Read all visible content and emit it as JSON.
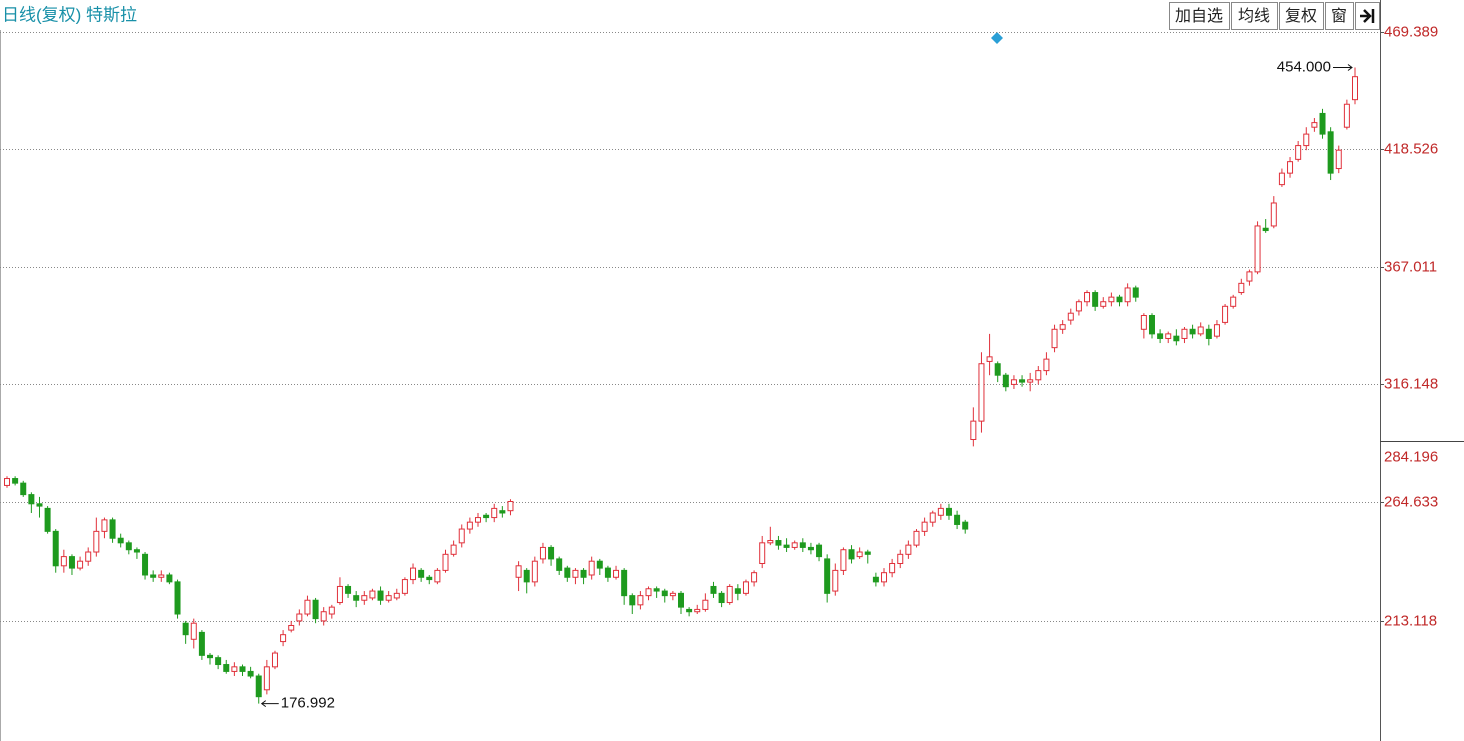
{
  "chart_data": {
    "type": "candlestick",
    "title": "日线(复权) 特斯拉",
    "buttons": [
      "加自选",
      "均线",
      "复权",
      "窗"
    ],
    "ylim": [
      160.7,
      483.4
    ],
    "yticks": [
      {
        "value": 469.389,
        "label": "469.389"
      },
      {
        "value": 418.526,
        "label": "418.526"
      },
      {
        "value": 367.011,
        "label": "367.011"
      },
      {
        "value": 316.148,
        "label": "316.148"
      },
      {
        "value": 264.633,
        "label": "264.633"
      },
      {
        "value": 213.118,
        "label": "213.118"
      }
    ],
    "axis_marker": {
      "value": 284.196,
      "label": "284.196"
    },
    "grid": true,
    "max_label": "454.000",
    "min_label": "176.992",
    "up_color": "#e0303a",
    "down_color": "#1e9a1e",
    "open": [
      272,
      275,
      273,
      268,
      264,
      262,
      252,
      237,
      241,
      236,
      239,
      243,
      252,
      257,
      249,
      247,
      244,
      242,
      233,
      232,
      233,
      230,
      212,
      205,
      208,
      198,
      197,
      194,
      191,
      193,
      191,
      189,
      183,
      193,
      204,
      209,
      213,
      216,
      222,
      213,
      216,
      221,
      228,
      224,
      222,
      223,
      226,
      222,
      223,
      225,
      231,
      235,
      232,
      230,
      235,
      242,
      247,
      253,
      256,
      259,
      258,
      261,
      261,
      232,
      235,
      230,
      240,
      245,
      240,
      236,
      232,
      235,
      233,
      239,
      236,
      232,
      235,
      224,
      220,
      224,
      227,
      226,
      224,
      225,
      218,
      217,
      218,
      228,
      225,
      221,
      227,
      225,
      230,
      238,
      247,
      248,
      246,
      245,
      247,
      245,
      246,
      240,
      226,
      235,
      244,
      241,
      243,
      232,
      230,
      234,
      238,
      242,
      246,
      252,
      256,
      259,
      262,
      259,
      256,
      292,
      300,
      326,
      325,
      320,
      316,
      318,
      317,
      318,
      322,
      332,
      340,
      344,
      348,
      352,
      356,
      350,
      352,
      354,
      352,
      358,
      340,
      346,
      338,
      336,
      337,
      336,
      340,
      338,
      340,
      337,
      343,
      350,
      356,
      361,
      365,
      384,
      385,
      403,
      408,
      414,
      420,
      428,
      434,
      426,
      410,
      428,
      440
    ],
    "close": [
      275,
      273,
      268,
      264,
      263,
      252,
      237,
      241,
      236,
      239,
      243,
      252,
      257,
      249,
      247,
      244,
      243,
      233,
      232,
      233,
      230,
      216,
      207,
      212,
      198,
      197,
      194,
      191,
      193,
      191,
      189,
      180,
      193,
      199,
      207,
      211,
      216,
      222,
      214,
      217,
      219,
      228,
      225,
      222,
      224,
      226,
      222,
      224,
      225,
      231,
      236,
      232,
      231,
      235,
      242,
      246,
      253,
      256,
      258,
      258,
      262,
      260,
      265,
      237,
      230,
      239,
      245,
      240,
      235,
      232,
      235,
      232,
      239,
      236,
      232,
      235,
      224,
      220,
      224,
      227,
      226,
      224,
      225,
      219,
      217,
      218,
      222,
      225,
      221,
      228,
      225,
      230,
      234,
      247,
      248,
      246,
      245,
      247,
      245,
      244,
      241,
      225,
      235,
      244,
      240,
      243,
      242,
      230,
      234,
      238,
      242,
      246,
      252,
      256,
      260,
      262,
      259,
      255,
      253,
      300,
      325,
      328,
      320,
      315,
      318,
      317,
      318,
      322,
      327,
      340,
      342,
      347,
      352,
      356,
      350,
      352,
      354,
      352,
      358,
      354,
      346,
      338,
      336,
      338,
      335,
      340,
      338,
      341,
      336,
      342,
      350,
      354,
      360,
      365,
      385,
      383,
      395,
      408,
      413,
      420,
      425,
      430,
      425,
      408,
      418,
      438,
      450
    ],
    "high": [
      276,
      276,
      274,
      269,
      267,
      263,
      253,
      244,
      242,
      241,
      245,
      258,
      258,
      258,
      251,
      248,
      245,
      243,
      235,
      235,
      234,
      231,
      213,
      214,
      209,
      199,
      198,
      196,
      195,
      194,
      193,
      190,
      196,
      200,
      209,
      213,
      218,
      224,
      223,
      219,
      220,
      232,
      229,
      226,
      226,
      227,
      228,
      226,
      227,
      232,
      238,
      236,
      233,
      236,
      244,
      248,
      255,
      258,
      260,
      260,
      264,
      263,
      266,
      239,
      236,
      241,
      247,
      246,
      241,
      237,
      236,
      236,
      241,
      240,
      237,
      237,
      236,
      225,
      226,
      228,
      228,
      227,
      226,
      226,
      219,
      220,
      225,
      230,
      226,
      229,
      229,
      231,
      235,
      250,
      254,
      250,
      249,
      248,
      249,
      247,
      247,
      242,
      238,
      245,
      246,
      245,
      244,
      234,
      236,
      240,
      244,
      248,
      253,
      258,
      261,
      264,
      264,
      261,
      257,
      306,
      330,
      338,
      326,
      321,
      320,
      320,
      321,
      324,
      330,
      342,
      344,
      349,
      353,
      357,
      357,
      354,
      356,
      355,
      360,
      359,
      347,
      347,
      340,
      339,
      340,
      341,
      342,
      343,
      342,
      344,
      351,
      355,
      362,
      366,
      387,
      388,
      398,
      410,
      415,
      422,
      428,
      432,
      436,
      428,
      420,
      440,
      454
    ],
    "low": [
      271,
      272,
      267,
      260,
      258,
      251,
      234,
      234,
      233,
      235,
      237,
      241,
      249,
      247,
      245,
      242,
      240,
      231,
      230,
      230,
      229,
      214,
      203,
      201,
      196,
      194,
      192,
      190,
      189,
      189,
      188,
      176.992,
      181,
      192,
      202,
      208,
      211,
      215,
      212,
      211,
      214,
      220,
      223,
      219,
      220,
      222,
      220,
      221,
      222,
      224,
      229,
      230,
      229,
      229,
      234,
      241,
      245,
      251,
      254,
      256,
      256,
      258,
      259,
      226,
      225,
      228,
      238,
      237,
      233,
      230,
      229,
      229,
      231,
      233,
      230,
      231,
      220,
      216,
      218,
      222,
      223,
      221,
      222,
      216,
      215,
      216,
      217,
      223,
      219,
      220,
      222,
      224,
      228,
      236,
      246,
      244,
      243,
      244,
      243,
      242,
      239,
      221,
      224,
      233,
      238,
      240,
      238,
      228,
      228,
      232,
      236,
      240,
      245,
      250,
      254,
      257,
      257,
      253,
      251,
      289,
      295,
      320,
      317,
      313,
      314,
      315,
      313,
      316,
      320,
      330,
      338,
      342,
      346,
      350,
      348,
      349,
      350,
      350,
      350,
      352,
      336,
      336,
      334,
      334,
      333,
      334,
      336,
      337,
      333,
      336,
      342,
      349,
      355,
      359,
      364,
      382,
      384,
      402,
      406,
      413,
      418,
      426,
      423,
      405,
      408,
      427,
      438
    ]
  }
}
